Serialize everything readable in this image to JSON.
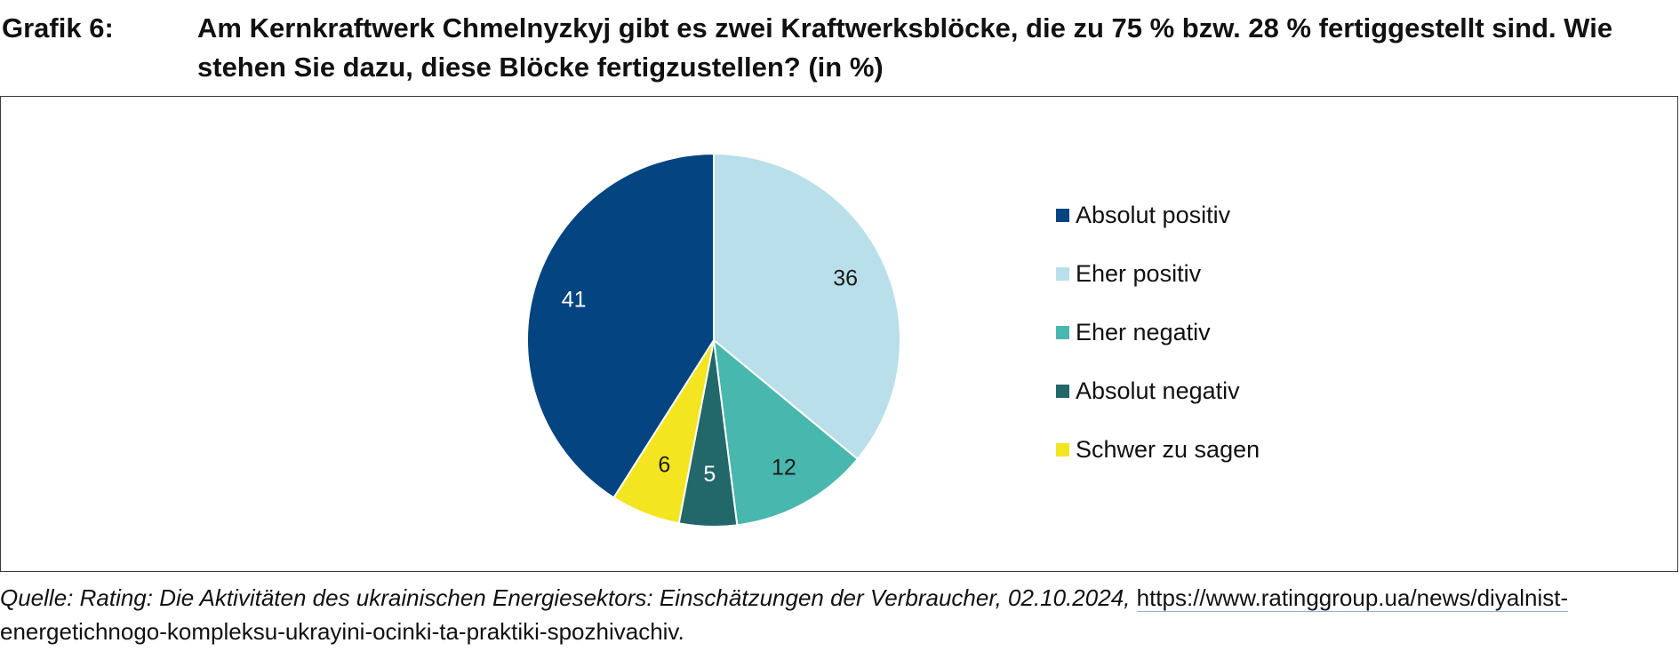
{
  "header": {
    "label": "Grafik 6:",
    "title": "Am Kernkraftwerk Chmelnyzkyj gibt es zwei Kraftwerksblöcke, die zu 75 % bzw. 28 % fertiggestellt sind. Wie stehen Sie dazu, diese Blöcke fertigzustellen? (in %)"
  },
  "chart_data": {
    "type": "pie",
    "categories": [
      "Absolut positiv",
      "Eher positiv",
      "Eher negativ",
      "Absolut negativ",
      "Schwer zu sagen"
    ],
    "values": [
      41,
      36,
      12,
      5,
      6
    ],
    "colors": [
      "#034481",
      "#b9dfea",
      "#48b7ad",
      "#22676a",
      "#f3e51f"
    ],
    "label_colors": [
      "#ffffff",
      "#1a1a1a",
      "#1a1a1a",
      "#ffffff",
      "#1a1a1a"
    ],
    "legend_position": "right",
    "start_slice": "Eher positiv",
    "direction": "clockwise"
  },
  "source": {
    "text": "Quelle: Rating: Die Aktivitäten des ukrainischen Energiesektors: Einschätzungen der Verbraucher, 02.10.2024,",
    "link_part1": "https://www.ratinggroup.ua/news/diyalnist-",
    "link_part2": "energetichnogo-kompleksu-ukrayini-ocinki-ta-praktiki-spozhivachiv."
  }
}
